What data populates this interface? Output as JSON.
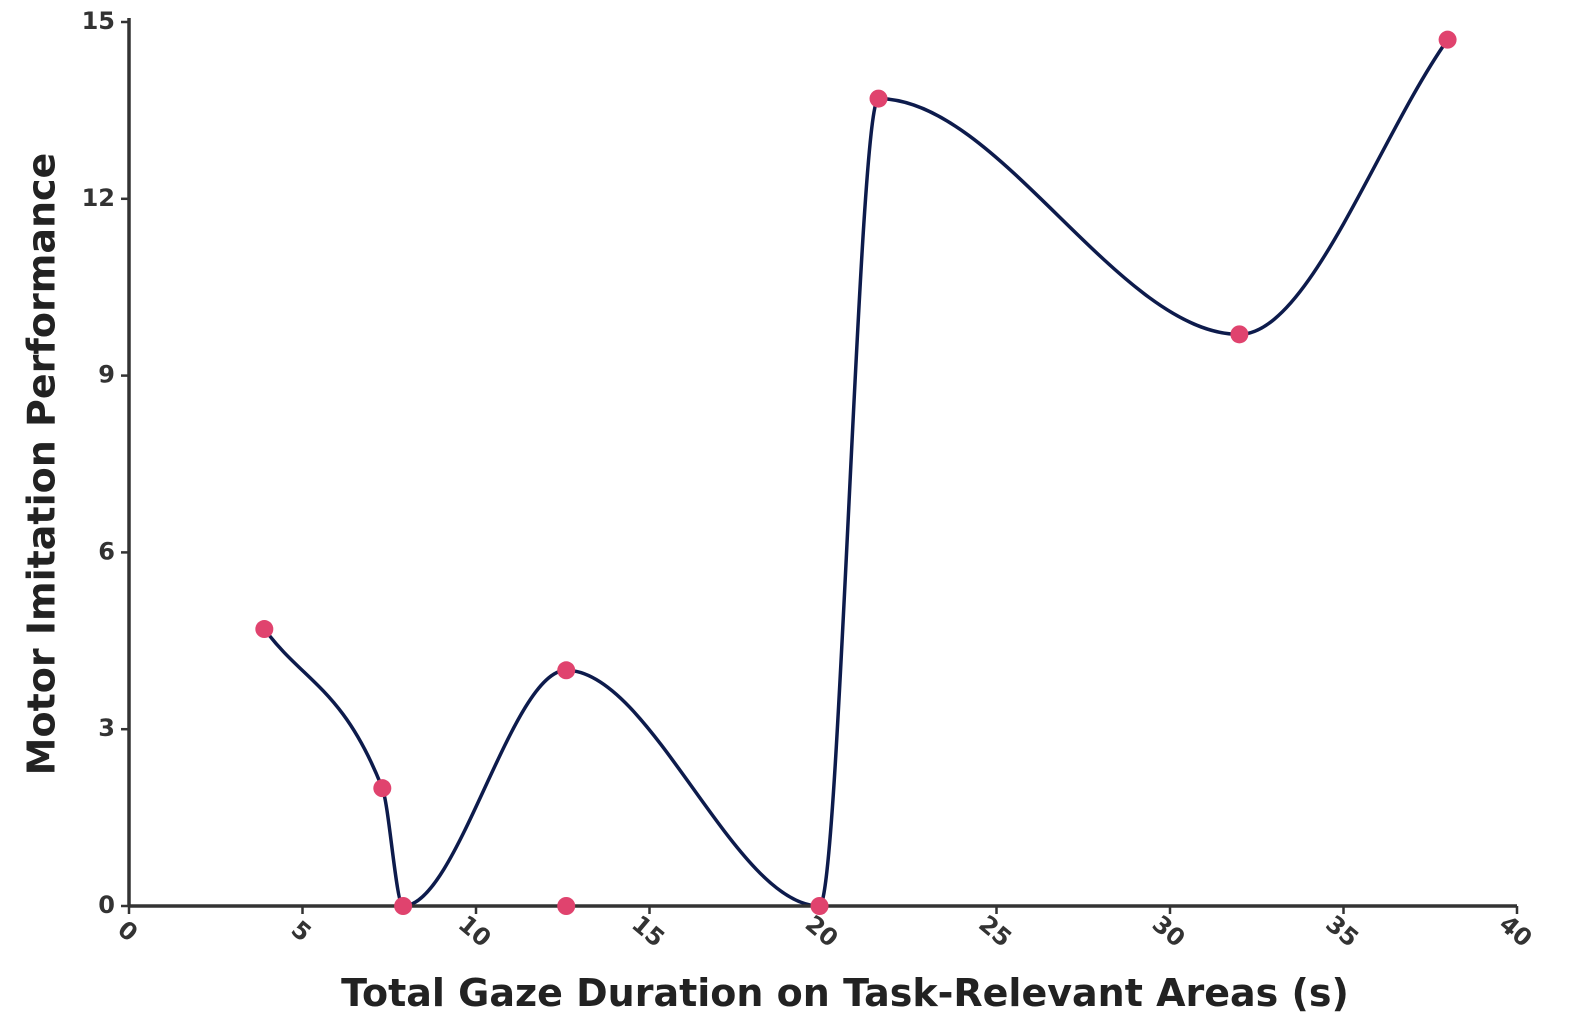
{
  "chart_data": {
    "type": "line",
    "xlabel": "Total Gaze Duration on Task-Relevant Areas (s)",
    "ylabel": "Motor Imitation Performance",
    "xlim": [
      0,
      40
    ],
    "ylim": [
      0,
      15
    ],
    "x_ticks": [
      0,
      5,
      10,
      15,
      20,
      25,
      30,
      35,
      40
    ],
    "y_ticks": [
      0,
      3,
      6,
      9,
      12,
      15
    ],
    "grid": false,
    "legend": "none",
    "line_color": "#0d1b4c",
    "marker_color": "#e0436e",
    "series": [
      {
        "points": [
          {
            "x": 3.9,
            "y": 4.7
          },
          {
            "x": 7.3,
            "y": 2.0
          },
          {
            "x": 7.9,
            "y": 0.0
          },
          {
            "x": 12.6,
            "y": 4.0
          },
          {
            "x": 12.6,
            "y": 0.0
          },
          {
            "x": 19.9,
            "y": 0.0
          },
          {
            "x": 21.6,
            "y": 13.7
          },
          {
            "x": 32.0,
            "y": 9.7
          },
          {
            "x": 38.0,
            "y": 14.7
          }
        ],
        "line_points": [
          {
            "x": 3.9,
            "y": 4.7
          },
          {
            "x": 7.3,
            "y": 2.0
          },
          {
            "x": 7.9,
            "y": 0.0
          },
          {
            "x": 12.6,
            "y": 4.0
          },
          {
            "x": 19.9,
            "y": 0.0
          },
          {
            "x": 21.6,
            "y": 13.7
          },
          {
            "x": 32.0,
            "y": 9.7
          },
          {
            "x": 38.0,
            "y": 14.7
          }
        ]
      }
    ]
  }
}
